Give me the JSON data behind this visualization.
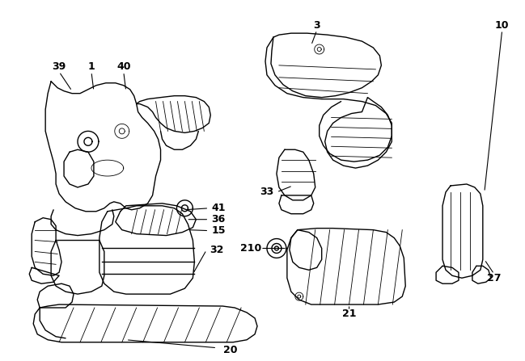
{
  "background_color": "#ffffff",
  "line_color": "#000000",
  "line_width": 1.0,
  "thin_lw": 0.6,
  "label_fontsize": 9,
  "fig_width": 6.49,
  "fig_height": 4.47,
  "dpi": 100
}
